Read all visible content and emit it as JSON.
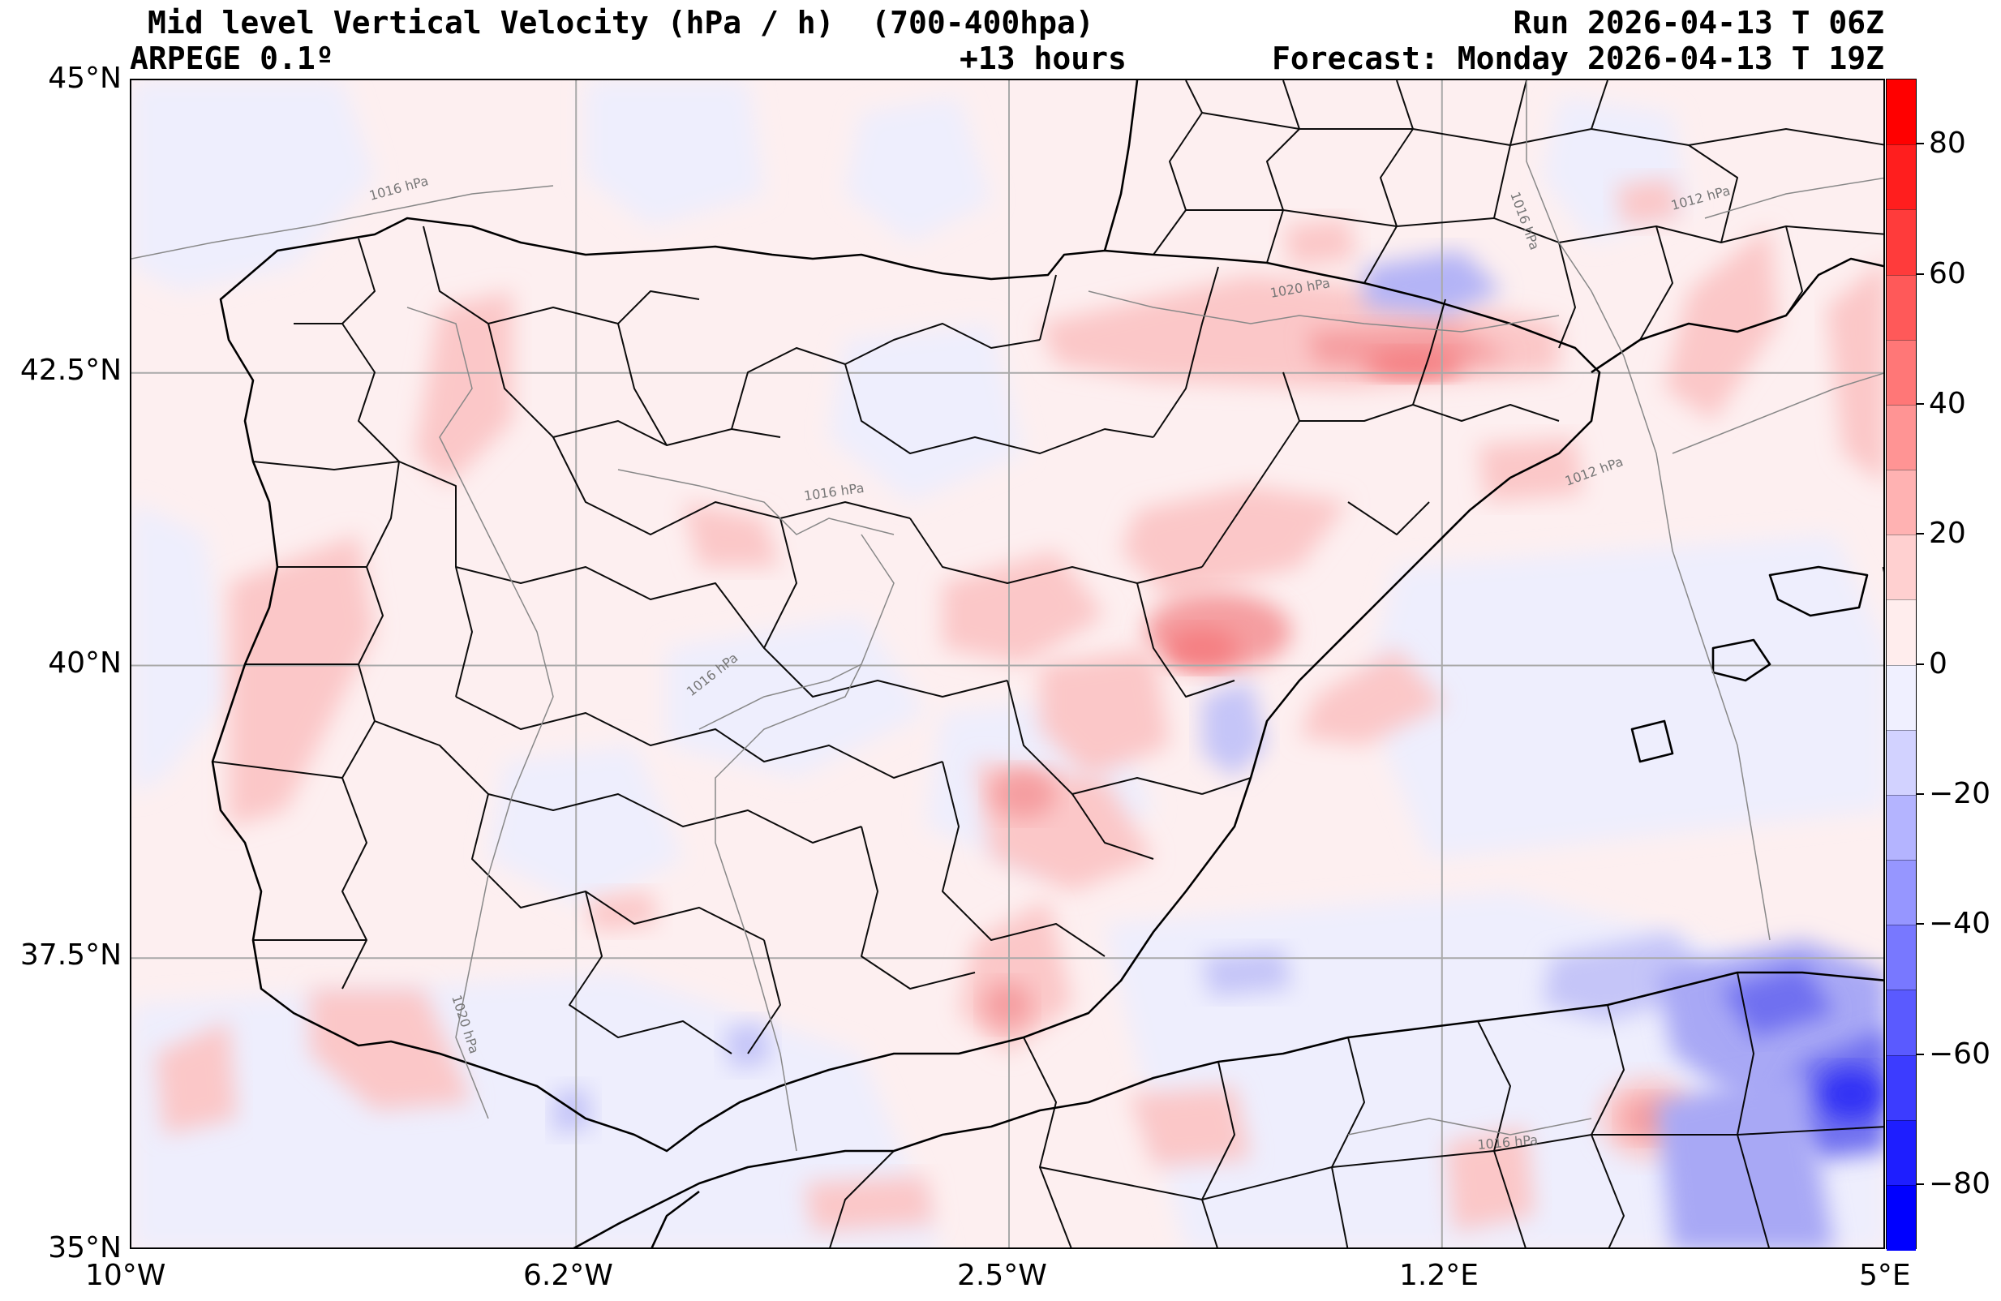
{
  "header": {
    "title": "Mid level Vertical Velocity (hPa / h)  (700-400hpa)",
    "model": "ARPEGE 0.1º",
    "lead": "+13 hours",
    "run": "Run 2026-04-13 T 06Z",
    "forecast": "Forecast: Monday 2026-04-13 T 19Z"
  },
  "axes": {
    "lat_labels": [
      "45°N",
      "42.5°N",
      "40°N",
      "37.5°N",
      "35°N"
    ],
    "lon_labels": [
      "10°W",
      "6.2°W",
      "2.5°W",
      "1.2°E",
      "5°E"
    ],
    "lat_range": [
      35,
      45
    ],
    "lon_range": [
      -10,
      5
    ],
    "grid": true
  },
  "colorbar": {
    "range": [
      -90,
      90
    ],
    "step": 10,
    "tick_labels": [
      "80",
      "60",
      "40",
      "20",
      "0",
      "−20",
      "−40",
      "−60",
      "−80"
    ],
    "colors": {
      "strong_positive": "#ff0000",
      "positive": "#ff8080",
      "weak_positive": "#fde8e8",
      "weak_negative": "#eeeefd",
      "negative": "#a8a8f5",
      "strong_negative": "#0000ff"
    }
  },
  "isobars": {
    "labels": [
      "1016 hPa",
      "1020 hPa",
      "1016 hPa",
      "1016 hPa",
      "1012 hPa",
      "1012 hPa",
      "1016 hPa",
      "1020 hPa",
      "1016 hPa"
    ]
  }
}
